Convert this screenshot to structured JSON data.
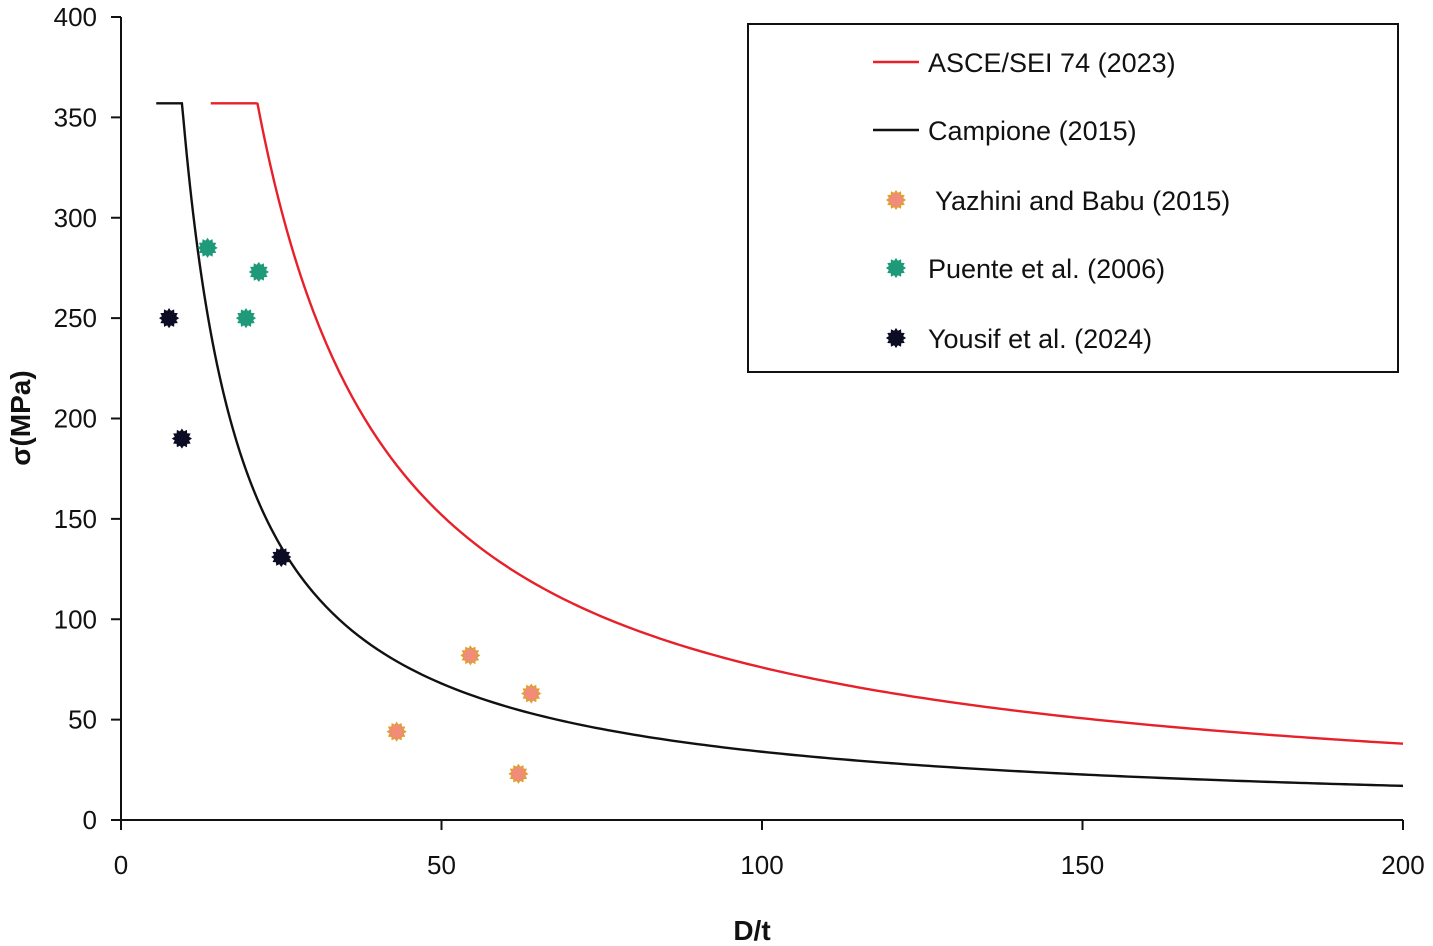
{
  "chart_data": {
    "type": "line+scatter",
    "title": "",
    "xlabel": "D/t",
    "ylabel": "σ(MPa)",
    "xlim": [
      0,
      200
    ],
    "ylim": [
      0,
      400
    ],
    "xticks": [
      0,
      50,
      100,
      150,
      200
    ],
    "yticks": [
      0,
      50,
      100,
      150,
      200,
      250,
      300,
      350,
      400
    ],
    "grid": false,
    "legend_position": "top-right",
    "series": [
      {
        "name": "ASCE/SEI 74 (2023)",
        "kind": "line",
        "color": "#e8202a",
        "plateau": {
          "x": [
            14,
            14.3
          ],
          "y": 357
        },
        "curve_constant": 7600,
        "x_end": 200
      },
      {
        "name": "Campione (2015)",
        "kind": "line",
        "color": "#111111",
        "plateau": {
          "x": [
            5.5,
            9.5
          ],
          "y": 357
        },
        "curve_constant": 3400,
        "x_end": 200
      },
      {
        "name": " Yazhini and Babu (2015)",
        "kind": "scatter",
        "color": "#f08c78",
        "edge": "#e0a030",
        "points": [
          [
            43,
            44
          ],
          [
            54.5,
            82
          ],
          [
            64,
            63
          ],
          [
            62,
            23
          ]
        ]
      },
      {
        "name": "Puente et al. (2006)",
        "kind": "scatter",
        "color": "#1e9a7a",
        "edge": "#1e9a7a",
        "points": [
          [
            13.5,
            285
          ],
          [
            21.5,
            273
          ],
          [
            19.5,
            250
          ]
        ]
      },
      {
        "name": "Yousif et al. (2024)",
        "kind": "scatter",
        "color": "#0c0c24",
        "edge": "#0c0c24",
        "points": [
          [
            7.5,
            250
          ],
          [
            9.5,
            190
          ],
          [
            25,
            131
          ]
        ]
      }
    ]
  }
}
